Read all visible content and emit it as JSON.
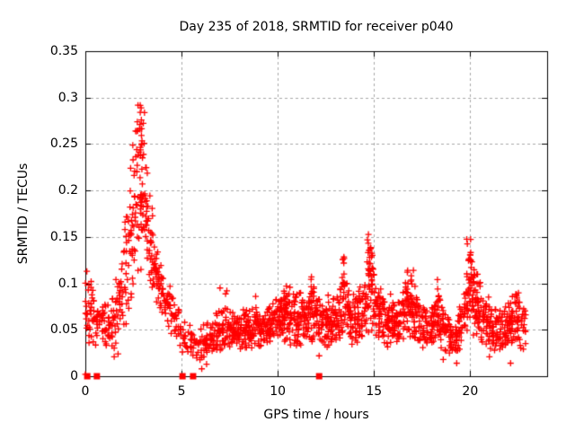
{
  "chart_data": {
    "type": "scatter",
    "title": "Day 235 of 2018, SRMTID for receiver p040",
    "xlabel": "GPS time / hours",
    "ylabel": "SRMTID / TECUs",
    "xlim": [
      0,
      24
    ],
    "ylim": [
      0,
      0.35
    ],
    "xticks": [
      0,
      5,
      10,
      15,
      20
    ],
    "xtick_labels": [
      "0",
      "5",
      "10",
      "15",
      "20"
    ],
    "yticks": [
      0,
      0.05,
      0.1,
      0.15,
      0.2,
      0.25,
      0.3,
      0.35
    ],
    "ytick_labels": [
      "0",
      "0.05",
      "0.1",
      "0.15",
      "0.2",
      "0.25",
      "0.3",
      "0.35"
    ],
    "grid": true,
    "legend": null,
    "marker": {
      "shape": "plus",
      "color": "#ff0000",
      "size": 7
    },
    "colors": {
      "grid": "#a8a8a8",
      "axis": "#000000",
      "background": "#ffffff"
    },
    "band_envelope": [
      [
        0.0,
        0.04,
        0.112,
        75
      ],
      [
        0.35,
        0.032,
        0.095,
        70
      ],
      [
        0.7,
        0.026,
        0.082,
        62
      ],
      [
        1.1,
        0.024,
        0.08,
        58
      ],
      [
        1.5,
        0.03,
        0.095,
        65
      ],
      [
        1.9,
        0.045,
        0.135,
        75
      ],
      [
        2.2,
        0.058,
        0.195,
        85
      ],
      [
        2.5,
        0.082,
        0.262,
        95
      ],
      [
        2.75,
        0.1,
        0.298,
        100
      ],
      [
        3.0,
        0.105,
        0.3,
        100
      ],
      [
        3.25,
        0.095,
        0.23,
        90
      ],
      [
        3.5,
        0.085,
        0.175,
        88
      ],
      [
        3.8,
        0.068,
        0.138,
        76
      ],
      [
        4.1,
        0.058,
        0.112,
        66
      ],
      [
        4.5,
        0.042,
        0.098,
        60
      ],
      [
        4.9,
        0.03,
        0.076,
        50
      ],
      [
        5.35,
        0.018,
        0.062,
        42
      ],
      [
        5.85,
        0.016,
        0.052,
        46
      ],
      [
        6.3,
        0.022,
        0.058,
        62
      ],
      [
        6.8,
        0.027,
        0.068,
        72
      ],
      [
        7.3,
        0.028,
        0.078,
        76
      ],
      [
        7.8,
        0.025,
        0.07,
        80
      ],
      [
        8.3,
        0.028,
        0.073,
        84
      ],
      [
        8.8,
        0.03,
        0.076,
        86
      ],
      [
        9.3,
        0.03,
        0.078,
        86
      ],
      [
        9.8,
        0.032,
        0.086,
        88
      ],
      [
        10.3,
        0.034,
        0.094,
        90
      ],
      [
        10.8,
        0.032,
        0.09,
        88
      ],
      [
        11.3,
        0.034,
        0.094,
        90
      ],
      [
        11.8,
        0.034,
        0.1,
        90
      ],
      [
        12.3,
        0.03,
        0.08,
        85
      ],
      [
        12.8,
        0.032,
        0.084,
        85
      ],
      [
        13.2,
        0.036,
        0.095,
        86
      ],
      [
        13.45,
        0.04,
        0.126,
        88
      ],
      [
        13.75,
        0.034,
        0.092,
        84
      ],
      [
        14.1,
        0.032,
        0.088,
        84
      ],
      [
        14.5,
        0.04,
        0.108,
        92
      ],
      [
        14.8,
        0.048,
        0.148,
        96
      ],
      [
        15.1,
        0.04,
        0.112,
        90
      ],
      [
        15.5,
        0.032,
        0.09,
        86
      ],
      [
        16.0,
        0.03,
        0.084,
        84
      ],
      [
        16.5,
        0.034,
        0.098,
        88
      ],
      [
        16.9,
        0.038,
        0.112,
        90
      ],
      [
        17.3,
        0.032,
        0.09,
        84
      ],
      [
        17.8,
        0.026,
        0.072,
        78
      ],
      [
        18.3,
        0.03,
        0.094,
        82
      ],
      [
        18.8,
        0.025,
        0.068,
        74
      ],
      [
        19.3,
        0.021,
        0.062,
        68
      ],
      [
        19.7,
        0.038,
        0.112,
        90
      ],
      [
        19.95,
        0.048,
        0.145,
        96
      ],
      [
        20.3,
        0.042,
        0.11,
        94
      ],
      [
        20.7,
        0.035,
        0.095,
        88
      ],
      [
        21.1,
        0.029,
        0.08,
        80
      ],
      [
        21.6,
        0.025,
        0.072,
        78
      ],
      [
        22.0,
        0.03,
        0.084,
        84
      ],
      [
        22.4,
        0.033,
        0.092,
        84
      ],
      [
        22.9,
        0.027,
        0.072,
        55
      ]
    ],
    "spike_columns": [
      [
        2.7,
        0.45,
        0.235,
        0.3,
        12
      ],
      [
        3.0,
        0.25,
        0.195,
        0.285,
        7
      ],
      [
        13.4,
        0.2,
        0.095,
        0.133,
        9
      ],
      [
        14.8,
        0.28,
        0.095,
        0.154,
        16
      ],
      [
        16.85,
        0.3,
        0.08,
        0.118,
        10
      ],
      [
        19.95,
        0.28,
        0.09,
        0.149,
        15
      ],
      [
        20.45,
        0.3,
        0.078,
        0.11,
        7
      ],
      [
        10.5,
        0.45,
        0.072,
        0.096,
        6
      ],
      [
        11.7,
        0.3,
        0.075,
        0.105,
        5
      ],
      [
        22.4,
        0.3,
        0.076,
        0.094,
        5
      ],
      [
        7.3,
        0.2,
        0.072,
        0.094,
        4
      ],
      [
        18.35,
        0.25,
        0.072,
        0.096,
        4
      ],
      [
        12.6,
        0.2,
        0.068,
        0.088,
        4
      ],
      [
        15.9,
        0.3,
        0.07,
        0.092,
        4
      ]
    ],
    "outlier_points": [
      [
        0.0,
        0.002
      ],
      [
        0.08,
        0.113
      ],
      [
        0.3,
        0.102
      ],
      [
        1.5,
        0.021
      ],
      [
        1.7,
        0.024
      ],
      [
        6.05,
        0.008
      ],
      [
        6.3,
        0.013
      ],
      [
        7.0,
        0.095
      ],
      [
        8.85,
        0.086
      ],
      [
        10.45,
        0.097
      ],
      [
        11.75,
        0.107
      ],
      [
        12.15,
        0.022
      ],
      [
        15.35,
        0.094
      ],
      [
        17.05,
        0.114
      ],
      [
        18.3,
        0.104
      ],
      [
        18.6,
        0.018
      ],
      [
        19.3,
        0.014
      ],
      [
        21.0,
        0.021
      ],
      [
        22.1,
        0.014
      ]
    ],
    "zero_squares_x": [
      0.1,
      0.6,
      5.05,
      5.6,
      12.15
    ],
    "seed": 7
  }
}
